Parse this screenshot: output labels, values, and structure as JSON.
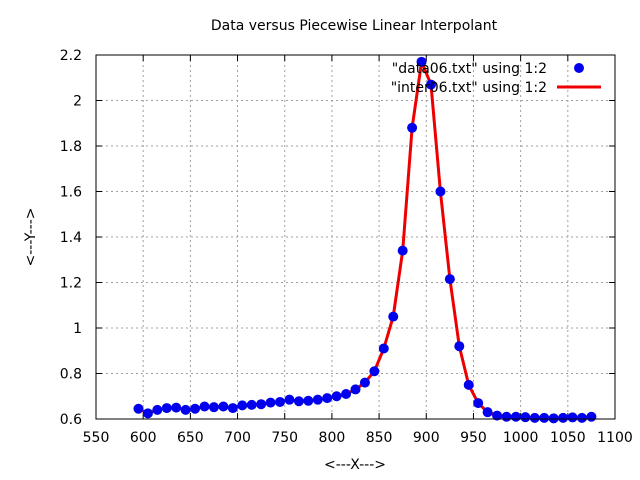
{
  "chart_data": {
    "type": "scatter",
    "title": "Data versus Piecewise Linear Interpolant",
    "xlabel": "<---X--->",
    "ylabel": "<---Y--->",
    "xlim": [
      550,
      1100
    ],
    "ylim": [
      0.6,
      2.2
    ],
    "xticks": [
      "550",
      "600",
      "650",
      "700",
      "750",
      "800",
      "850",
      "900",
      "950",
      "1000",
      "1050",
      "1100"
    ],
    "yticks": [
      "0.6",
      "0.8",
      "1",
      "1.2",
      "1.4",
      "1.6",
      "1.8",
      "2",
      "2.2"
    ],
    "grid": true,
    "legend_position": "top-right",
    "series": [
      {
        "name": "\"data06.txt\" using 1:2",
        "style": "points",
        "color": "#0000ee",
        "x": [
          595,
          605,
          615,
          625,
          635,
          645,
          655,
          665,
          675,
          685,
          695,
          705,
          715,
          725,
          735,
          745,
          755,
          765,
          775,
          785,
          795,
          805,
          815,
          825,
          835,
          845,
          855,
          865,
          875,
          885,
          895,
          905,
          915,
          925,
          935,
          945,
          955,
          965,
          975,
          985,
          995,
          1005,
          1015,
          1025,
          1035,
          1045,
          1055,
          1065,
          1075
        ],
        "y": [
          0.645,
          0.625,
          0.64,
          0.648,
          0.65,
          0.64,
          0.645,
          0.655,
          0.652,
          0.655,
          0.648,
          0.66,
          0.662,
          0.665,
          0.672,
          0.675,
          0.685,
          0.678,
          0.68,
          0.685,
          0.692,
          0.7,
          0.71,
          0.73,
          0.76,
          0.81,
          0.91,
          1.05,
          1.34,
          1.88,
          2.17,
          2.07,
          1.6,
          1.215,
          0.92,
          0.75,
          0.67,
          0.63,
          0.615,
          0.61,
          0.61,
          0.608,
          0.605,
          0.605,
          0.603,
          0.605,
          0.607,
          0.605,
          0.61
        ]
      },
      {
        "name": "\"inter06.txt\" using 1:2",
        "style": "line",
        "color": "#ee0000",
        "x": [
          595,
          605,
          615,
          625,
          635,
          645,
          655,
          665,
          675,
          685,
          695,
          705,
          715,
          725,
          735,
          745,
          755,
          765,
          775,
          785,
          795,
          805,
          815,
          825,
          835,
          845,
          855,
          865,
          875,
          885,
          895,
          905,
          915,
          925,
          935,
          945,
          955,
          965,
          975,
          985,
          995,
          1005,
          1015,
          1025,
          1035,
          1045,
          1055,
          1065,
          1075
        ],
        "y": [
          0.645,
          0.625,
          0.64,
          0.648,
          0.65,
          0.64,
          0.645,
          0.655,
          0.652,
          0.655,
          0.648,
          0.66,
          0.662,
          0.665,
          0.672,
          0.675,
          0.685,
          0.678,
          0.68,
          0.685,
          0.692,
          0.7,
          0.71,
          0.73,
          0.76,
          0.81,
          0.91,
          1.05,
          1.34,
          1.88,
          2.17,
          2.07,
          1.6,
          1.215,
          0.92,
          0.75,
          0.67,
          0.63,
          0.615,
          0.61,
          0.61,
          0.608,
          0.605,
          0.605,
          0.603,
          0.605,
          0.607,
          0.605,
          0.61
        ]
      }
    ]
  }
}
